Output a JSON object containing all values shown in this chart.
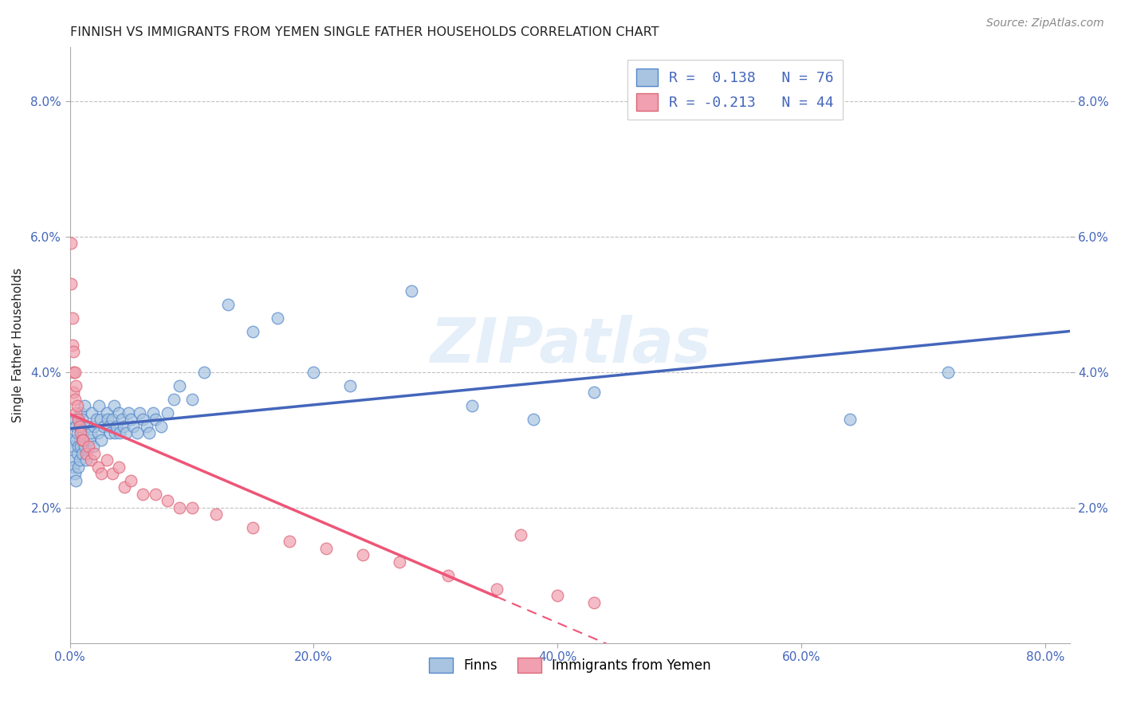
{
  "title": "FINNISH VS IMMIGRANTS FROM YEMEN SINGLE FATHER HOUSEHOLDS CORRELATION CHART",
  "source": "Source: ZipAtlas.com",
  "ylabel": "Single Father Households",
  "x_tick_labels": [
    "0.0%",
    "20.0%",
    "40.0%",
    "60.0%",
    "80.0%"
  ],
  "x_tick_vals": [
    0.0,
    0.2,
    0.4,
    0.6,
    0.8
  ],
  "y_tick_labels": [
    "2.0%",
    "4.0%",
    "6.0%",
    "8.0%"
  ],
  "y_tick_vals": [
    0.02,
    0.04,
    0.06,
    0.08
  ],
  "legend_bottom": [
    "Finns",
    "Immigrants from Yemen"
  ],
  "legend_top_blue": "R =  0.138   N = 76",
  "legend_top_pink": "R = -0.213   N = 44",
  "watermark": "ZIPatlas",
  "background_color": "#ffffff",
  "grid_color": "#bbbbbb",
  "blue_fill": "#a8c4e0",
  "blue_edge": "#5588cc",
  "pink_fill": "#f0a0b0",
  "pink_edge": "#dd6677",
  "blue_line": "#4466bb",
  "pink_line": "#ee5577",
  "title_color": "#222222",
  "source_color": "#888888",
  "tick_color": "#4466bb",
  "xlim": [
    0.0,
    0.82
  ],
  "ylim": [
    0.0,
    0.088
  ],
  "finns_x": [
    0.001,
    0.002,
    0.003,
    0.003,
    0.004,
    0.004,
    0.005,
    0.005,
    0.005,
    0.006,
    0.006,
    0.007,
    0.007,
    0.007,
    0.008,
    0.008,
    0.009,
    0.009,
    0.01,
    0.01,
    0.011,
    0.012,
    0.012,
    0.013,
    0.015,
    0.016,
    0.017,
    0.018,
    0.019,
    0.02,
    0.022,
    0.023,
    0.024,
    0.025,
    0.026,
    0.028,
    0.03,
    0.031,
    0.032,
    0.033,
    0.035,
    0.036,
    0.037,
    0.038,
    0.04,
    0.041,
    0.043,
    0.044,
    0.046,
    0.048,
    0.05,
    0.052,
    0.055,
    0.057,
    0.06,
    0.063,
    0.065,
    0.068,
    0.07,
    0.075,
    0.08,
    0.085,
    0.09,
    0.1,
    0.11,
    0.13,
    0.15,
    0.17,
    0.2,
    0.23,
    0.28,
    0.33,
    0.38,
    0.43,
    0.64,
    0.72
  ],
  "finns_y": [
    0.03,
    0.029,
    0.027,
    0.026,
    0.033,
    0.025,
    0.032,
    0.03,
    0.024,
    0.031,
    0.028,
    0.033,
    0.029,
    0.026,
    0.032,
    0.027,
    0.034,
    0.029,
    0.033,
    0.028,
    0.031,
    0.035,
    0.029,
    0.027,
    0.032,
    0.03,
    0.031,
    0.034,
    0.029,
    0.032,
    0.033,
    0.031,
    0.035,
    0.033,
    0.03,
    0.032,
    0.034,
    0.033,
    0.032,
    0.031,
    0.033,
    0.035,
    0.031,
    0.032,
    0.034,
    0.031,
    0.033,
    0.032,
    0.031,
    0.034,
    0.033,
    0.032,
    0.031,
    0.034,
    0.033,
    0.032,
    0.031,
    0.034,
    0.033,
    0.032,
    0.034,
    0.036,
    0.038,
    0.036,
    0.04,
    0.05,
    0.046,
    0.048,
    0.04,
    0.038,
    0.052,
    0.035,
    0.033,
    0.037,
    0.033,
    0.04
  ],
  "yemen_x": [
    0.001,
    0.001,
    0.002,
    0.002,
    0.003,
    0.003,
    0.003,
    0.004,
    0.004,
    0.005,
    0.005,
    0.006,
    0.007,
    0.008,
    0.009,
    0.01,
    0.011,
    0.013,
    0.015,
    0.017,
    0.02,
    0.023,
    0.026,
    0.03,
    0.035,
    0.04,
    0.045,
    0.05,
    0.06,
    0.07,
    0.08,
    0.09,
    0.1,
    0.12,
    0.15,
    0.18,
    0.21,
    0.24,
    0.27,
    0.31,
    0.35,
    0.37,
    0.4,
    0.43
  ],
  "yemen_y": [
    0.059,
    0.053,
    0.048,
    0.044,
    0.043,
    0.04,
    0.037,
    0.04,
    0.036,
    0.038,
    0.034,
    0.035,
    0.033,
    0.032,
    0.031,
    0.03,
    0.03,
    0.028,
    0.029,
    0.027,
    0.028,
    0.026,
    0.025,
    0.027,
    0.025,
    0.026,
    0.023,
    0.024,
    0.022,
    0.022,
    0.021,
    0.02,
    0.02,
    0.019,
    0.017,
    0.015,
    0.014,
    0.013,
    0.012,
    0.01,
    0.008,
    0.016,
    0.007,
    0.006
  ]
}
